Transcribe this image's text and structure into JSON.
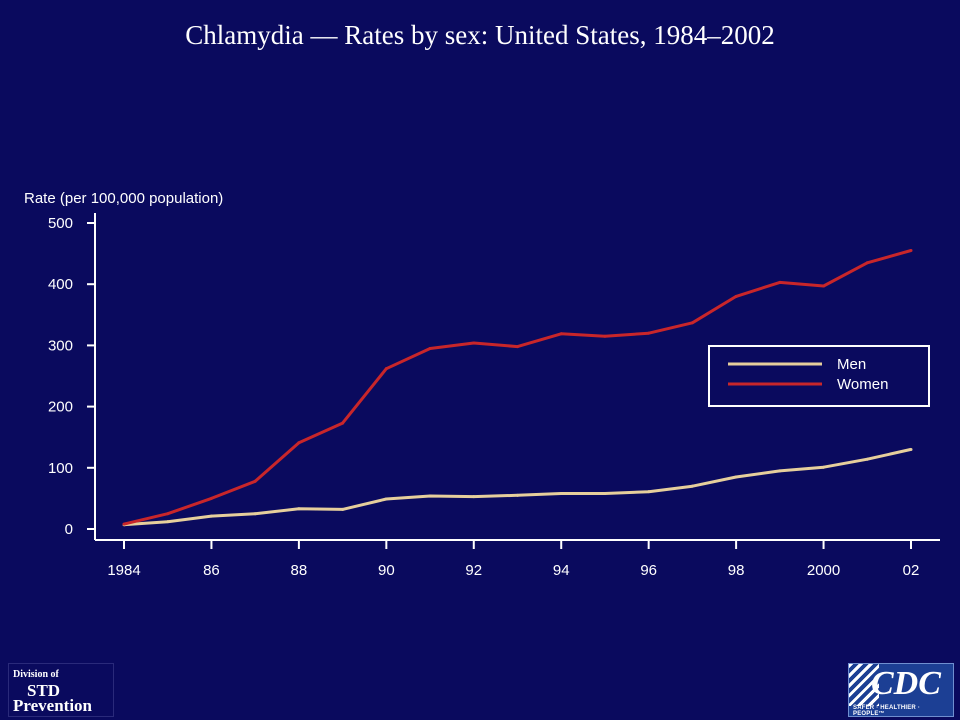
{
  "slide": {
    "title": "Chlamydia — Rates by sex: United States, 1984–2002"
  },
  "chart_data": {
    "type": "line",
    "title": "Chlamydia — Rates by sex: United States, 1984–2002",
    "ylabel": "Rate (per 100,000 population)",
    "xlabel": "",
    "x": [
      1984,
      1985,
      1986,
      1987,
      1988,
      1989,
      1990,
      1991,
      1992,
      1993,
      1994,
      1995,
      1996,
      1997,
      1998,
      1999,
      2000,
      2001,
      2002
    ],
    "xticks": [
      1984,
      1986,
      1988,
      1990,
      1992,
      1994,
      1996,
      1998,
      2000,
      2002
    ],
    "xtick_labels": [
      "1984",
      "86",
      "88",
      "90",
      "92",
      "94",
      "96",
      "98",
      "2000",
      "02"
    ],
    "yticks": [
      0,
      100,
      200,
      300,
      400,
      500
    ],
    "ylim": [
      0,
      500
    ],
    "xlim": [
      1984,
      2002
    ],
    "legend_position": "right",
    "grid": false,
    "series": [
      {
        "name": "Men",
        "color": "#e6cf9c",
        "values": [
          7,
          12,
          21,
          25,
          33,
          32,
          49,
          54,
          53,
          55,
          58,
          58,
          61,
          70,
          85,
          95,
          101,
          114,
          130
        ]
      },
      {
        "name": "Women",
        "color": "#c8262a",
        "values": [
          8,
          25,
          50,
          78,
          141,
          173,
          262,
          295,
          304,
          298,
          319,
          315,
          320,
          337,
          380,
          403,
          397,
          435,
          455
        ]
      }
    ]
  },
  "logos": {
    "std": {
      "line1": "Division of",
      "line2": "STD",
      "line3": "Prevention"
    },
    "cdc": {
      "mark": "CDC",
      "tagline": "SAFER · HEALTHIER · PEOPLE™"
    }
  },
  "colors": {
    "background": "#0a0a5e",
    "axis": "#ffffff",
    "legend_border": "#ffffff"
  }
}
